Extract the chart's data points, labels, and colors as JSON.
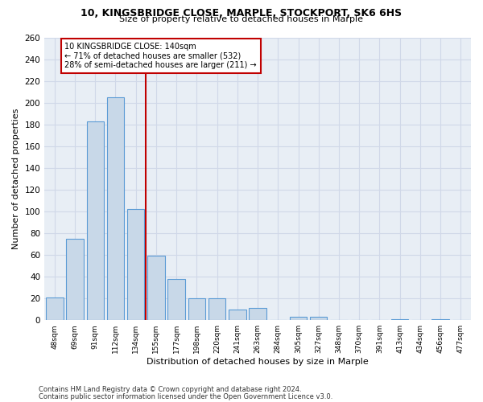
{
  "title1": "10, KINGSBRIDGE CLOSE, MARPLE, STOCKPORT, SK6 6HS",
  "title2": "Size of property relative to detached houses in Marple",
  "xlabel": "Distribution of detached houses by size in Marple",
  "ylabel": "Number of detached properties",
  "footnote1": "Contains HM Land Registry data © Crown copyright and database right 2024.",
  "footnote2": "Contains public sector information licensed under the Open Government Licence v3.0.",
  "bar_labels": [
    "48sqm",
    "69sqm",
    "91sqm",
    "112sqm",
    "134sqm",
    "155sqm",
    "177sqm",
    "198sqm",
    "220sqm",
    "241sqm",
    "263sqm",
    "284sqm",
    "305sqm",
    "327sqm",
    "348sqm",
    "370sqm",
    "391sqm",
    "413sqm",
    "434sqm",
    "456sqm",
    "477sqm"
  ],
  "bar_values": [
    21,
    75,
    183,
    205,
    102,
    59,
    38,
    20,
    20,
    10,
    11,
    0,
    3,
    3,
    0,
    0,
    0,
    1,
    0,
    1,
    0
  ],
  "bar_color": "#c8d8e8",
  "bar_edge_color": "#5b9bd5",
  "grid_color": "#d0d8e8",
  "vline_color": "#c00000",
  "property_label": "10 KINGSBRIDGE CLOSE: 140sqm",
  "annotation_line1": "← 71% of detached houses are smaller (532)",
  "annotation_line2": "28% of semi-detached houses are larger (211) →",
  "annotation_box_color": "#c00000",
  "ylim": [
    0,
    260
  ],
  "yticks": [
    0,
    20,
    40,
    60,
    80,
    100,
    120,
    140,
    160,
    180,
    200,
    220,
    240,
    260
  ],
  "bg_color": "#e8eef5"
}
